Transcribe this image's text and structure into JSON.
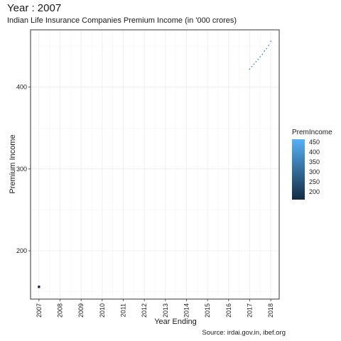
{
  "chart_data": {
    "type": "scatter",
    "title": "Year : 2007",
    "subtitle": "Indian Life Insurance Companies Premium Income (in '000 crores)",
    "xlabel": "Year Ending",
    "ylabel": "Premium Income",
    "caption": "Source: irdai.gov.in, ibef.org",
    "x_ticks": [
      "2007",
      "2008",
      "2009",
      "2010",
      "2011",
      "2012",
      "2013",
      "2014",
      "2015",
      "2016",
      "2017",
      "2018"
    ],
    "y_ticks": [
      200,
      300,
      400
    ],
    "xlim": [
      2006.6,
      2018.4
    ],
    "ylim": [
      141,
      470
    ],
    "grid": true,
    "points": [
      {
        "x": 2007.0,
        "y": 156,
        "color": "#1b2a3e"
      }
    ],
    "trail": [
      {
        "x": 2017.0,
        "y": 422
      },
      {
        "x": 2017.1,
        "y": 425
      },
      {
        "x": 2017.2,
        "y": 428
      },
      {
        "x": 2017.3,
        "y": 431
      },
      {
        "x": 2017.4,
        "y": 434
      },
      {
        "x": 2017.5,
        "y": 437
      },
      {
        "x": 2017.6,
        "y": 440
      },
      {
        "x": 2017.7,
        "y": 444
      },
      {
        "x": 2017.8,
        "y": 447
      },
      {
        "x": 2017.9,
        "y": 451
      },
      {
        "x": 2018.0,
        "y": 456
      }
    ],
    "trail_color": "#3f8fd6",
    "legend": {
      "title": "PremIncome",
      "placement": "right",
      "labels": [
        "450",
        "400",
        "350",
        "300",
        "250",
        "200"
      ],
      "color_low": "#132b43",
      "color_high": "#56b1f7"
    }
  }
}
